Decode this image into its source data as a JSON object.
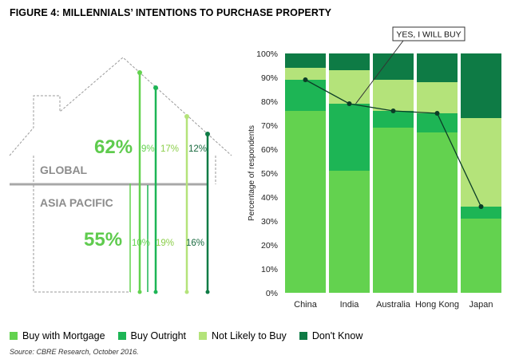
{
  "title": "FIGURE 4: MILLENNIALS’ INTENTIONS TO PURCHASE PROPERTY",
  "source": "Source: CBRE Research, October 2016.",
  "colors": {
    "buy_with_mortgage": "#63d24f",
    "buy_outright": "#1db555",
    "not_likely_to_buy": "#b4e37a",
    "dont_know": "#0e7b45",
    "house_big_value": "#5fcb4e"
  },
  "house": {
    "global_label": "GLOBAL",
    "asia_label": "ASIA PACIFIC",
    "global_values": [
      "62%",
      "9%",
      "17%",
      "12%"
    ],
    "asia_values": [
      "55%",
      "10%",
      "19%",
      "16%"
    ]
  },
  "chart_data": {
    "type": "bar",
    "stacked": true,
    "categories": [
      "China",
      "India",
      "Australia",
      "Hong Kong",
      "Japan"
    ],
    "series": [
      {
        "name": "Buy with Mortgage",
        "values": [
          76,
          51,
          69,
          67,
          31
        ]
      },
      {
        "name": "Buy Outright",
        "values": [
          13,
          28,
          7,
          8,
          5
        ]
      },
      {
        "name": "Not Likely to Buy",
        "values": [
          5,
          14,
          13,
          13,
          37
        ]
      },
      {
        "name": "Don't Know",
        "values": [
          6,
          7,
          11,
          12,
          27
        ]
      }
    ],
    "line": {
      "values": [
        89,
        79,
        76,
        75,
        36
      ]
    },
    "annotation": "YES, I WILL BUY",
    "ylabel": "Percentage of respondents",
    "ylim": [
      0,
      100
    ],
    "yticks": [
      "0%",
      "10%",
      "20%",
      "30%",
      "40%",
      "50%",
      "60%",
      "70%",
      "80%",
      "90%",
      "100%"
    ],
    "legend_position": "bottom"
  }
}
